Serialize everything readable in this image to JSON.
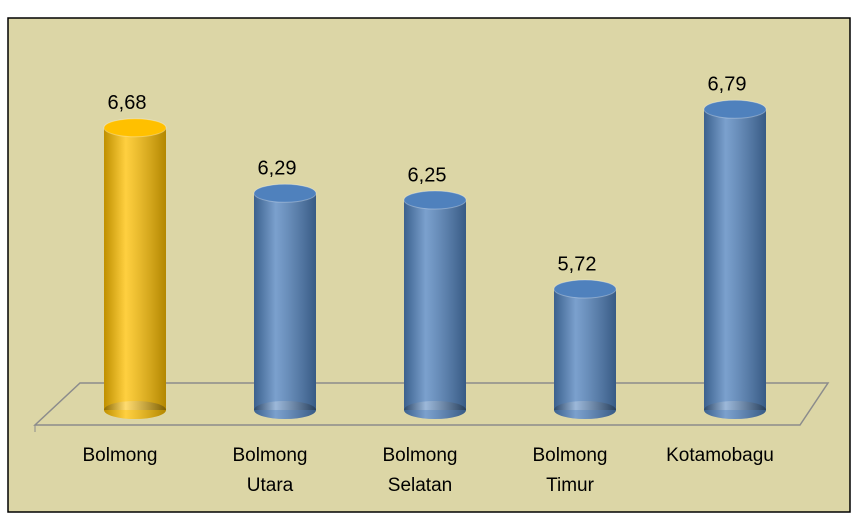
{
  "chart_data": {
    "type": "bar",
    "categories": [
      "Bolmong",
      "Bolmong\nUtara",
      "Bolmong\nSelatan",
      "Bolmong\nTimur",
      "Kotamobagu"
    ],
    "values": [
      6.68,
      6.29,
      6.25,
      5.72,
      6.79
    ],
    "value_labels": [
      "6,68",
      "6,29",
      "6,25",
      "5,72",
      "6,79"
    ],
    "colors": [
      "#ffc000",
      "#4f81bd",
      "#4f81bd",
      "#4f81bd",
      "#4f81bd"
    ],
    "ylim": [
      5,
      7
    ]
  }
}
